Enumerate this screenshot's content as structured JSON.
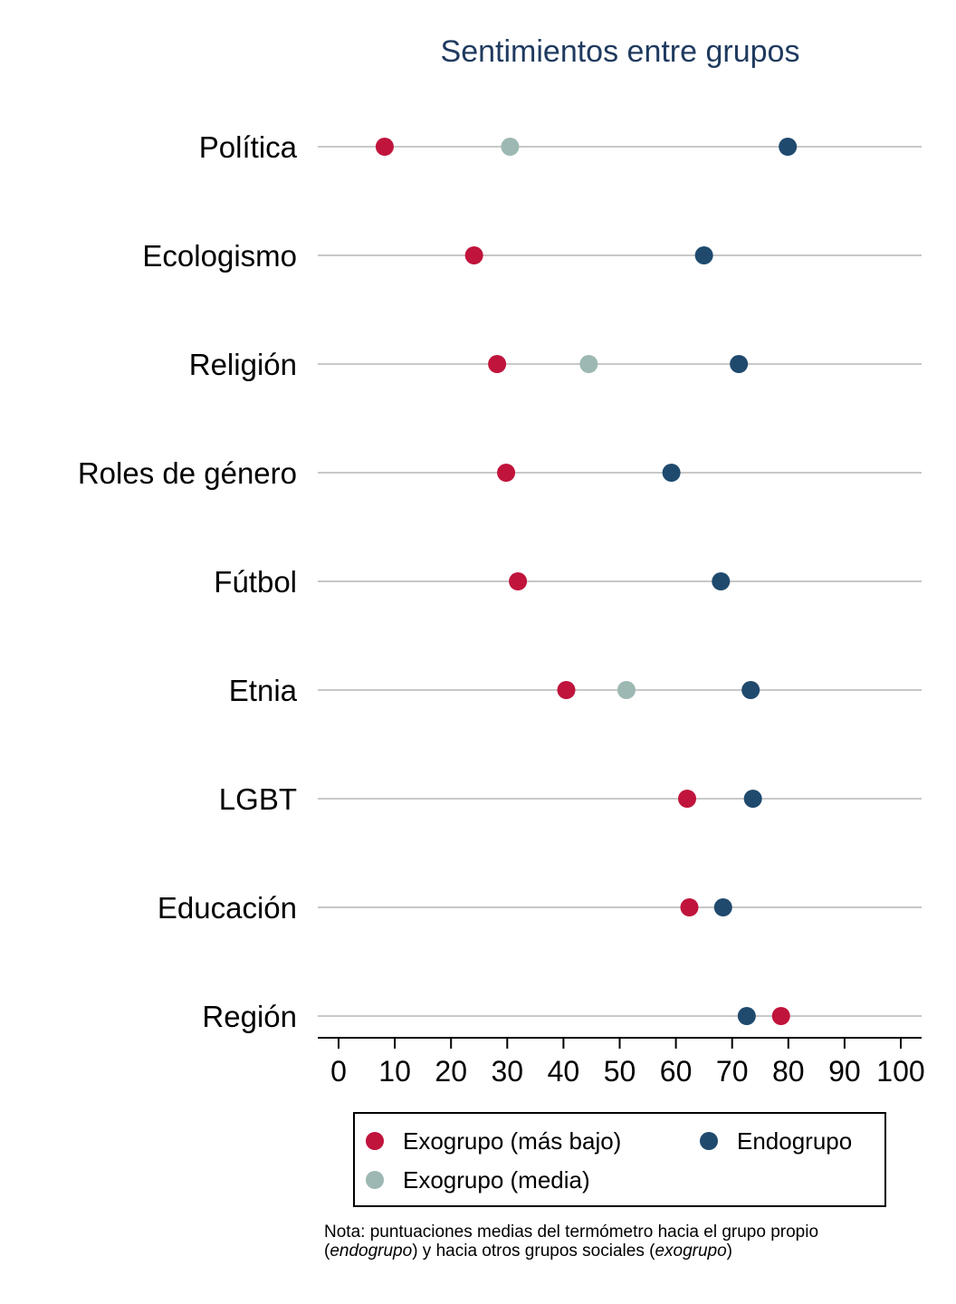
{
  "chart_data": {
    "type": "scatter",
    "title": "Sentimientos entre grupos",
    "xlabel": "",
    "ylabel": "",
    "xlim": [
      -3,
      104
    ],
    "xticks": [
      0,
      10,
      20,
      30,
      40,
      50,
      60,
      70,
      80,
      90,
      100
    ],
    "grid": false,
    "legend_position": "bottom",
    "categories": [
      "Política",
      "Ecologismo",
      "Religión",
      "Roles de género",
      "Fútbol",
      "Etnia",
      "LGBT",
      "Educación",
      "Región"
    ],
    "series": [
      {
        "name": "Exogrupo (más bajo)",
        "color": "#c0143c",
        "values": [
          8.2,
          24.1,
          28.2,
          29.8,
          31.9,
          40.5,
          62.0,
          62.4,
          78.7
        ]
      },
      {
        "name": "Endogrupo",
        "color": "#1f4a6e",
        "values": [
          79.9,
          65.0,
          71.2,
          59.2,
          68.0,
          73.3,
          73.7,
          68.4,
          72.6
        ]
      },
      {
        "name": "Exogrupo (media)",
        "color": "#9db8b2",
        "values": [
          30.5,
          null,
          44.5,
          null,
          null,
          51.2,
          null,
          null,
          null
        ]
      }
    ]
  },
  "note": {
    "line1": "Nota: puntuaciones medias del termómetro hacia el grupo propio",
    "line2_pre": "(",
    "line2_em1": "endogrupo",
    "line2_mid": ") y hacia otros grupos sociales (",
    "line2_em2": "exogrupo",
    "line2_post": ")"
  }
}
